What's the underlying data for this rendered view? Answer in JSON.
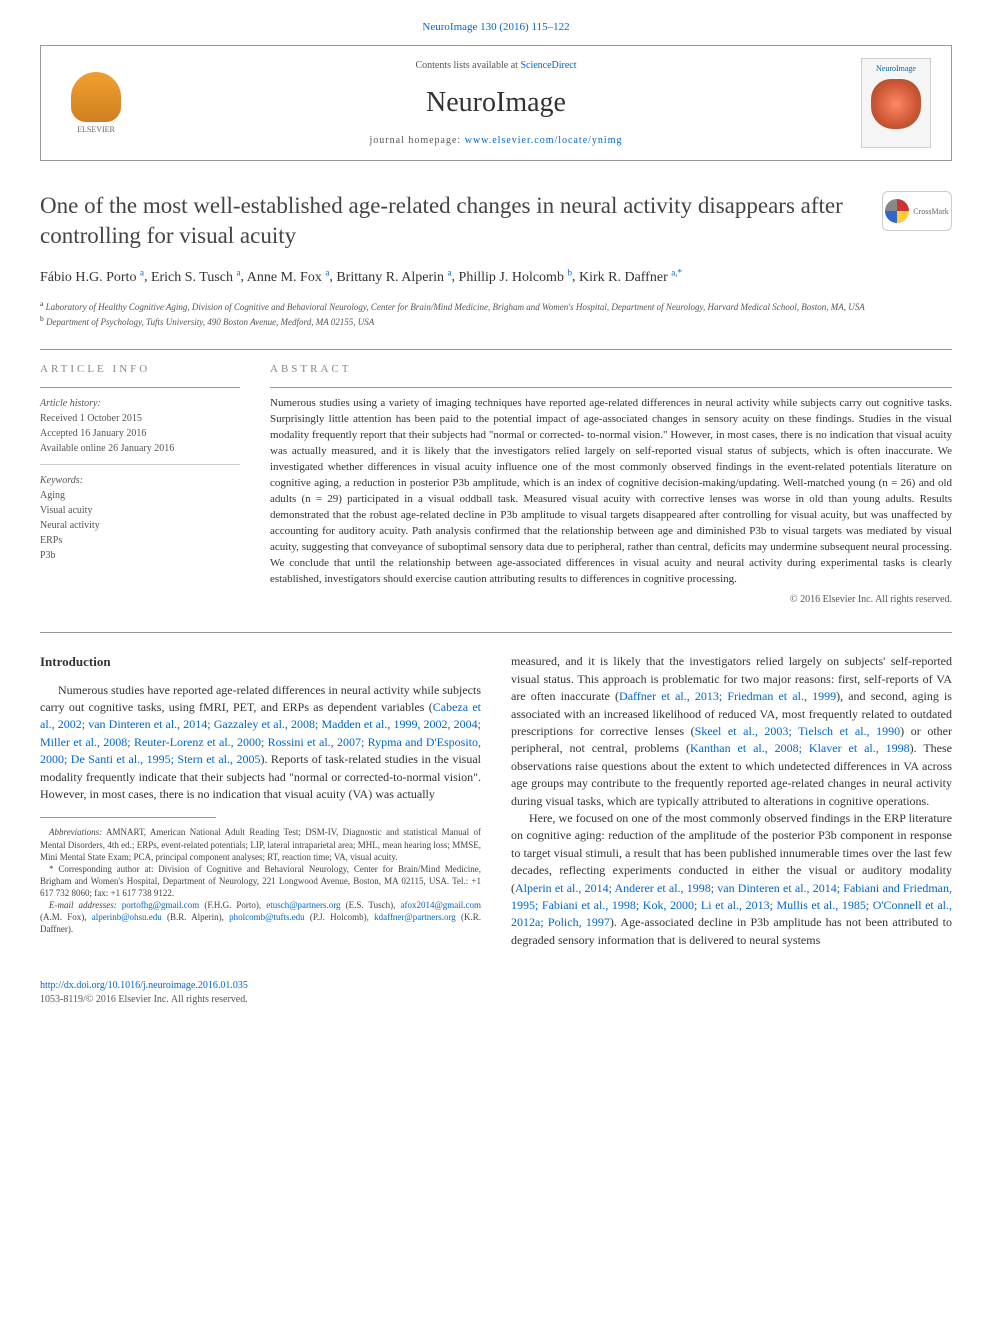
{
  "topLink": "NeuroImage 130 (2016) 115–122",
  "header": {
    "contentsLine": "Contents lists available at ",
    "contentsLink": "ScienceDirect",
    "journalName": "NeuroImage",
    "homepageLabel": "journal homepage: ",
    "homepageUrl": "www.elsevier.com/locate/ynimg",
    "elsevierName": "ELSEVIER",
    "coverTitle": "NeuroImage"
  },
  "article": {
    "title": "One of the most well-established age-related changes in neural activity disappears after controlling for visual acuity",
    "crossmarkLabel": "CrossMark",
    "authors": [
      {
        "name": "Fábio H.G. Porto",
        "affil": "a"
      },
      {
        "name": "Erich S. Tusch",
        "affil": "a"
      },
      {
        "name": "Anne M. Fox",
        "affil": "a"
      },
      {
        "name": "Brittany R. Alperin",
        "affil": "a"
      },
      {
        "name": "Phillip J. Holcomb",
        "affil": "b"
      },
      {
        "name": "Kirk R. Daffner",
        "affil": "a,*"
      }
    ],
    "affiliations": {
      "a": "Laboratory of Healthy Cognitive Aging, Division of Cognitive and Behavioral Neurology, Center for Brain/Mind Medicine, Brigham and Women's Hospital, Department of Neurology, Harvard Medical School, Boston, MA, USA",
      "b": "Department of Psychology, Tufts University, 490 Boston Avenue, Medford, MA 02155, USA"
    }
  },
  "info": {
    "sectionLabel": "ARTICLE INFO",
    "historyLabel": "Article history:",
    "received": "Received 1 October 2015",
    "accepted": "Accepted 16 January 2016",
    "online": "Available online 26 January 2016",
    "keywordsLabel": "Keywords:",
    "keywords": [
      "Aging",
      "Visual acuity",
      "Neural activity",
      "ERPs",
      "P3b"
    ]
  },
  "abstract": {
    "sectionLabel": "ABSTRACT",
    "text": "Numerous studies using a variety of imaging techniques have reported age-related differences in neural activity while subjects carry out cognitive tasks. Surprisingly little attention has been paid to the potential impact of age-associated changes in sensory acuity on these findings. Studies in the visual modality frequently report that their subjects had \"normal or corrected- to-normal vision.\" However, in most cases, there is no indication that visual acuity was actually measured, and it is likely that the investigators relied largely on self-reported visual status of subjects, which is often inaccurate. We investigated whether differences in visual acuity influence one of the most commonly observed findings in the event-related potentials literature on cognitive aging, a reduction in posterior P3b amplitude, which is an index of cognitive decision-making/updating. Well-matched young (n = 26) and old adults (n = 29) participated in a visual oddball task. Measured visual acuity with corrective lenses was worse in old than young adults. Results demonstrated that the robust age-related decline in P3b amplitude to visual targets disappeared after controlling for visual acuity, but was unaffected by accounting for auditory acuity. Path analysis confirmed that the relationship between age and diminished P3b to visual targets was mediated by visual acuity, suggesting that conveyance of suboptimal sensory data due to peripheral, rather than central, deficits may undermine subsequent neural processing. We conclude that until the relationship between age-associated differences in visual acuity and neural activity during experimental tasks is clearly established, investigators should exercise caution attributing results to differences in cognitive processing.",
    "copyright": "© 2016 Elsevier Inc. All rights reserved."
  },
  "body": {
    "introHeading": "Introduction",
    "introPara1_a": "Numerous studies have reported age-related differences in neural activity while subjects carry out cognitive tasks, using fMRI, PET, and ERPs as dependent variables (",
    "introPara1_link": "Cabeza et al., 2002; van Dinteren et al., 2014; Gazzaley et al., 2008; Madden et al., 1999, 2002, 2004; Miller et al., 2008; Reuter-Lorenz et al., 2000; Rossini et al., 2007; Rypma and D'Esposito, 2000; De Santi et al., 1995; Stern et al., 2005",
    "introPara1_b": "). Reports of task-related studies in the visual modality frequently indicate that their subjects had \"normal or corrected-to-normal vision\". However, in most cases, there is no indication that visual acuity (VA) was actually",
    "col2Para1_a": "measured, and it is likely that the investigators relied largely on subjects' self-reported visual status. This approach is problematic for two major reasons: first, self-reports of VA are often inaccurate (",
    "col2Para1_link1": "Daffner et al., 2013; Friedman et al., 1999",
    "col2Para1_b": "), and second, aging is associated with an increased likelihood of reduced VA, most frequently related to outdated prescriptions for corrective lenses (",
    "col2Para1_link2": "Skeel et al., 2003; Tielsch et al., 1990",
    "col2Para1_c": ") or other peripheral, not central, problems (",
    "col2Para1_link3": "Kanthan et al., 2008; Klaver et al., 1998",
    "col2Para1_d": "). These observations raise questions about the extent to which undetected differences in VA across age groups may contribute to the frequently reported age-related changes in neural activity during visual tasks, which are typically attributed to alterations in cognitive operations.",
    "col2Para2_a": "Here, we focused on one of the most commonly observed findings in the ERP literature on cognitive aging: reduction of the amplitude of the posterior P3b component in response to target visual stimuli, a result that has been published innumerable times over the last few decades, reflecting experiments conducted in either the visual or auditory modality (",
    "col2Para2_link": "Alperin et al., 2014; Anderer et al., 1998; van Dinteren et al., 2014; Fabiani and Friedman, 1995; Fabiani et al., 1998; Kok, 2000; Li et al., 2013; Mullis et al., 1985; O'Connell et al., 2012a; Polich, 1997",
    "col2Para2_b": "). Age-associated decline in P3b amplitude has not been attributed to degraded sensory information that is delivered to neural systems"
  },
  "footnotes": {
    "abbrevLabel": "Abbreviations:",
    "abbrev": " AMNART, American National Adult Reading Test; DSM-IV, Diagnostic and statistical Manual of Mental Disorders, 4th ed.; ERPs, event-related potentials; LIP, lateral intraparietal area; MHL, mean hearing loss; MMSE, Mini Mental State Exam; PCA, principal component analyses; RT, reaction time; VA, visual acuity.",
    "corr": "* Corresponding author at: Division of Cognitive and Behavioral Neurology, Center for Brain/Mind Medicine, Brigham and Women's Hospital, Department of Neurology, 221 Longwood Avenue, Boston, MA 02115, USA. Tel.: +1 617 732 8060; fax: +1 617 738 9122.",
    "emailLabel": "E-mail addresses: ",
    "emails": [
      {
        "email": "portofhg@gmail.com",
        "who": " (F.H.G. Porto), "
      },
      {
        "email": "etusch@partners.org",
        "who": " (E.S. Tusch), "
      },
      {
        "email": "afox2014@gmail.com",
        "who": " (A.M. Fox), "
      },
      {
        "email": "alperinb@ohsu.edu",
        "who": " (B.R. Alperin), "
      },
      {
        "email": "pholcomb@tufts.edu",
        "who": " (P.J. Holcomb), "
      },
      {
        "email": "kdaffner@partners.org",
        "who": " (K.R. Daffner)."
      }
    ]
  },
  "footer": {
    "doi": "http://dx.doi.org/10.1016/j.neuroimage.2016.01.035",
    "issn": "1053-8119/© 2016 Elsevier Inc. All rights reserved."
  }
}
